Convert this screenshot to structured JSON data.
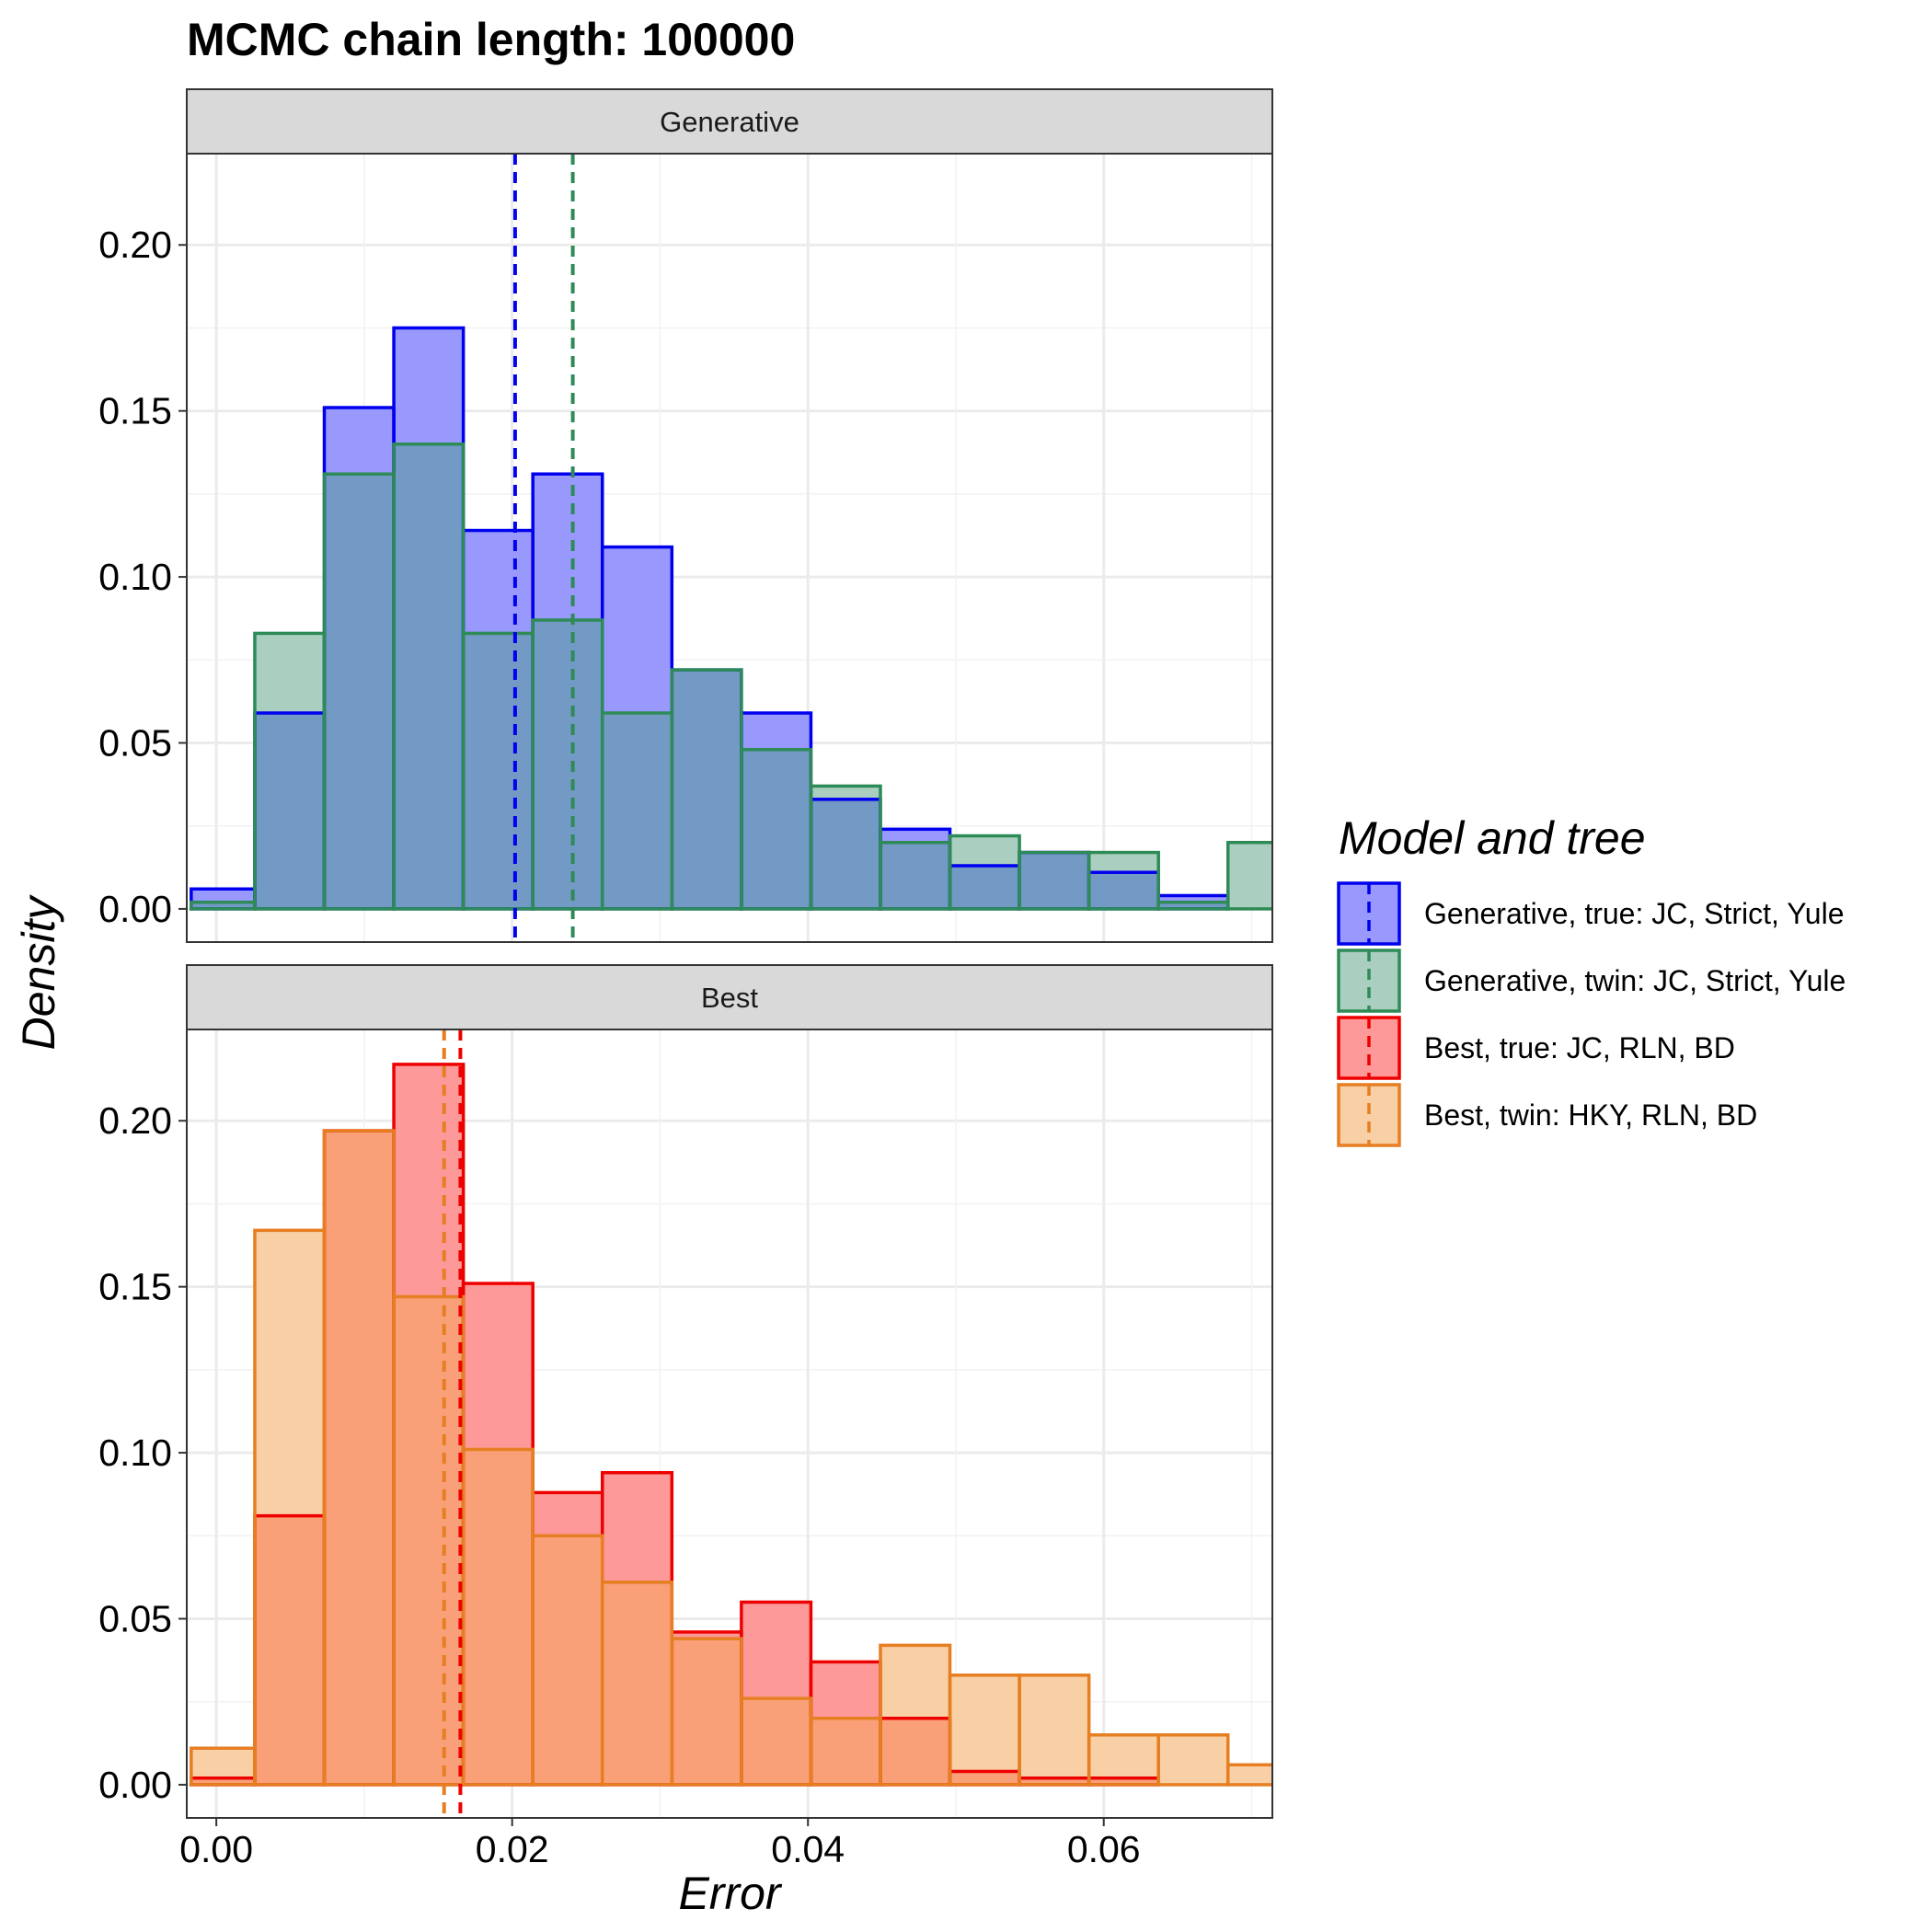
{
  "chart_data": {
    "type": "histogram",
    "title": "MCMC chain length: 100000",
    "xlabel": "Error",
    "ylabel": "Density",
    "xlim": [
      -0.002,
      0.0714
    ],
    "ylim": [
      -0.01,
      0.2275
    ],
    "x_ticks": [
      0.0,
      0.02,
      0.04,
      0.06
    ],
    "x_tick_labels": [
      "0.00",
      "0.02",
      "0.04",
      "0.06"
    ],
    "y_ticks": [
      0.0,
      0.05,
      0.1,
      0.15,
      0.2
    ],
    "y_tick_labels": [
      "0.00",
      "0.05",
      "0.10",
      "0.15",
      "0.20"
    ],
    "grid": true,
    "bin_edges": [
      -0.0017,
      0.0026,
      0.0073,
      0.012,
      0.0167,
      0.0214,
      0.0261,
      0.0308,
      0.0355,
      0.0402,
      0.0449,
      0.0496,
      0.0543,
      0.059,
      0.0637,
      0.0684,
      0.0731
    ],
    "legend": {
      "title": "Model and tree",
      "position": "right",
      "entries": [
        {
          "label": "Generative, true: JC, Strict, Yule",
          "color": "#0000ee",
          "fill": "#9999fd"
        },
        {
          "label": "Generative, twin: JC, Strict, Yule",
          "color": "#2e8b57",
          "fill": "#aacfc0"
        },
        {
          "label": "Best, true: JC, RLN, BD",
          "color": "#ee0000",
          "fill": "#fd9999"
        },
        {
          "label": "Best, twin: HKY, RLN, BD",
          "color": "#e67e22",
          "fill": "#f9cfa6"
        }
      ]
    },
    "panels": [
      {
        "strip_label": "Generative",
        "overlap_fill": "#7399c5",
        "series": [
          {
            "name": "Generative, true: JC, Strict, Yule",
            "color": "#0000ee",
            "fill": "#9999fd",
            "values": [
              0.006,
              0.059,
              0.151,
              0.175,
              0.114,
              0.131,
              0.109,
              0.072,
              0.059,
              0.033,
              0.024,
              0.013,
              0.017,
              0.011,
              0.004,
              0.0
            ],
            "mean": 0.0202
          },
          {
            "name": "Generative, twin: JC, Strict, Yule",
            "color": "#2e8b57",
            "fill": "#aacfc0",
            "values": [
              0.002,
              0.083,
              0.131,
              0.14,
              0.083,
              0.087,
              0.059,
              0.072,
              0.048,
              0.037,
              0.02,
              0.022,
              0.017,
              0.017,
              0.002,
              0.02
            ],
            "mean": 0.0241
          }
        ]
      },
      {
        "strip_label": "Best",
        "overlap_fill": "#f9a078",
        "series": [
          {
            "name": "Best, true: JC, RLN, BD",
            "color": "#ee0000",
            "fill": "#fd9999",
            "values": [
              0.002,
              0.081,
              0.197,
              0.217,
              0.151,
              0.088,
              0.094,
              0.046,
              0.055,
              0.037,
              0.02,
              0.004,
              0.002,
              0.002,
              0.0,
              0.0
            ],
            "mean": 0.0165
          },
          {
            "name": "Best, twin: HKY, RLN, BD",
            "color": "#e67e22",
            "fill": "#f9cfa6",
            "values": [
              0.011,
              0.167,
              0.197,
              0.147,
              0.101,
              0.075,
              0.061,
              0.044,
              0.026,
              0.02,
              0.042,
              0.033,
              0.033,
              0.015,
              0.015,
              0.006
            ],
            "mean": 0.0154
          }
        ]
      }
    ]
  }
}
